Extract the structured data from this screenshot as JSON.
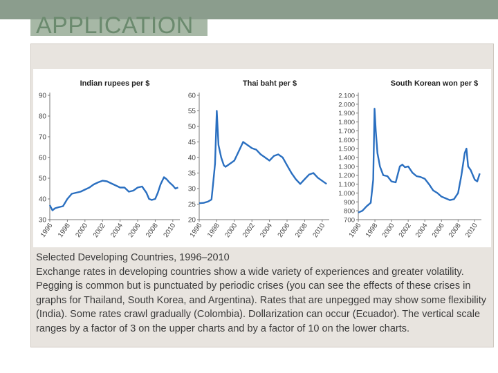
{
  "slide": {
    "title": "APPLICATION",
    "caption_title": "Selected Developing Countries, 1996–2010",
    "caption_body": "Exchange rates in developing countries show a wide variety of experiences and greater volatility. Pegging is common but is punctuated by periodic crises (you can see the effects of these crises in graphs for Thailand, South Korea, and Argentina). Rates that are unpegged may show some flexibility (India). Some rates crawl gradually (Colombia). Dollarization can occur (Ecuador). The vertical scale ranges by a factor of 3 on the upper charts and by a factor of 10 on the lower charts."
  },
  "colors": {
    "line": "#2a6fc0",
    "title_text": "#6b8a6e",
    "bar": "#8b9d8d"
  },
  "chart_data": [
    {
      "type": "line",
      "title": "Indian rupees per $",
      "ylim": [
        30,
        90
      ],
      "yticks": [
        30,
        40,
        50,
        60,
        70,
        80,
        90
      ],
      "ytick_labels": [
        "30",
        "40",
        "50",
        "60",
        "70",
        "80",
        "90"
      ],
      "xlim": [
        1996,
        2010.8
      ],
      "xticks": [
        1996,
        1998,
        2000,
        2002,
        2004,
        2006,
        2008,
        2010
      ],
      "xtick_labels": [
        "1996",
        "1998",
        "2000",
        "2002",
        "2004",
        "2006",
        "2008",
        "2010"
      ],
      "x": [
        1996,
        1996.3,
        1996.6,
        1997,
        1997.5,
        1998,
        1998.5,
        1999,
        1999.5,
        2000,
        2000.5,
        2001,
        2001.5,
        2002,
        2002.5,
        2003,
        2003.5,
        2004,
        2004.5,
        2005,
        2005.5,
        2006,
        2006.5,
        2007,
        2007.3,
        2007.6,
        2008,
        2008.3,
        2008.6,
        2009,
        2009.3,
        2009.6,
        2010,
        2010.3,
        2010.6
      ],
      "y": [
        37,
        34.5,
        35.5,
        36,
        36.5,
        40,
        42.5,
        43,
        43.5,
        44.5,
        45.5,
        47,
        48,
        48.8,
        48.5,
        47.5,
        46.5,
        45.5,
        45.5,
        43.5,
        44,
        45.5,
        46,
        43,
        40,
        39.5,
        40,
        43,
        47,
        50.5,
        49.5,
        48,
        46.5,
        45,
        45.5
      ]
    },
    {
      "type": "line",
      "title": "Thai baht per $",
      "ylim": [
        20,
        60
      ],
      "yticks": [
        20,
        25,
        30,
        35,
        40,
        45,
        50,
        55,
        60
      ],
      "ytick_labels": [
        "20",
        "25",
        "30",
        "35",
        "40",
        "45",
        "50",
        "55",
        "60"
      ],
      "xlim": [
        1996,
        2010.8
      ],
      "xticks": [
        1996,
        1998,
        2000,
        2002,
        2004,
        2006,
        2008,
        2010
      ],
      "xtick_labels": [
        "1996",
        "1998",
        "2000",
        "2002",
        "2004",
        "2006",
        "2008",
        "2010"
      ],
      "x": [
        1996,
        1996.5,
        1997,
        1997.4,
        1997.6,
        1997.8,
        1998.0,
        1998.2,
        1998.5,
        1998.8,
        1999,
        1999.5,
        2000,
        2000.5,
        2001,
        2001.5,
        2002,
        2002.5,
        2003,
        2003.5,
        2004,
        2004.5,
        2005,
        2005.5,
        2006,
        2006.5,
        2007,
        2007.5,
        2008,
        2008.5,
        2009,
        2009.5,
        2010,
        2010.5
      ],
      "y": [
        25.3,
        25.4,
        25.8,
        26.5,
        32,
        38,
        55,
        44,
        40,
        37.5,
        37,
        38,
        39,
        42,
        45,
        44,
        43,
        42.5,
        41,
        40,
        39,
        40.5,
        41,
        40,
        37.5,
        35,
        33,
        31.5,
        33,
        34.5,
        35,
        33.5,
        32.5,
        31.5
      ]
    },
    {
      "type": "line",
      "title": "South Korean won per $",
      "ylim": [
        700,
        2100
      ],
      "yticks": [
        700,
        800,
        900,
        1000,
        1100,
        1200,
        1300,
        1400,
        1500,
        1600,
        1700,
        1800,
        1900,
        2000,
        2100
      ],
      "ytick_labels": [
        "700",
        "800",
        "900",
        "1.000",
        "1.100",
        "1.200",
        "1.300",
        "1.400",
        "1.500",
        "1.600",
        "1.700",
        "1.800",
        "1.900",
        "2.000",
        "2.100"
      ],
      "xlim": [
        1996,
        2010.8
      ],
      "xticks": [
        1996,
        1998,
        2000,
        2002,
        2004,
        2006,
        2008,
        2010
      ],
      "xtick_labels": [
        "1996",
        "1998",
        "2000",
        "2002",
        "2004",
        "2006",
        "2008",
        "2010"
      ],
      "x": [
        1996,
        1996.5,
        1997,
        1997.5,
        1997.8,
        1997.95,
        1998.1,
        1998.3,
        1998.6,
        1999,
        1999.5,
        2000,
        2000.5,
        2001,
        2001.3,
        2001.6,
        2002,
        2002.5,
        2003,
        2003.5,
        2004,
        2004.5,
        2005,
        2005.5,
        2006,
        2006.5,
        2007,
        2007.5,
        2008,
        2008.4,
        2008.8,
        2009.0,
        2009.2,
        2009.5,
        2010,
        2010.3,
        2010.6
      ],
      "y": [
        780,
        800,
        850,
        890,
        1150,
        1950,
        1700,
        1450,
        1300,
        1200,
        1190,
        1130,
        1120,
        1300,
        1320,
        1290,
        1300,
        1230,
        1190,
        1180,
        1160,
        1100,
        1030,
        1000,
        960,
        940,
        920,
        930,
        1000,
        1200,
        1450,
        1500,
        1300,
        1260,
        1150,
        1130,
        1220
      ]
    }
  ]
}
